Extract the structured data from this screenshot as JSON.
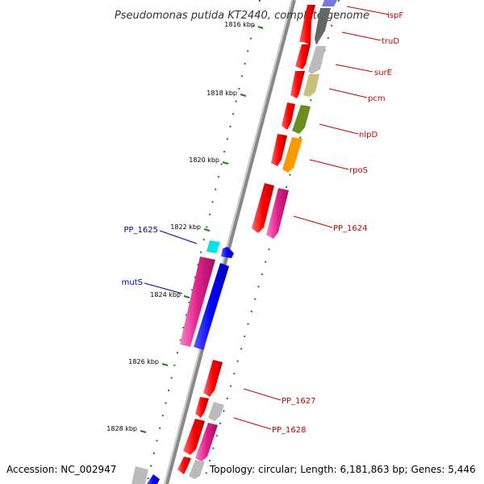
{
  "title": "Pseudomonas putida KT2440, complete genome",
  "accession": "Accession: NC_002947",
  "topology": "Topology: circular; Length: 6,181,863 bp; Genes: 5,446",
  "colors": {
    "backbone": "#777777",
    "tick": "#1a7f1a",
    "forward_label": "#cc0000",
    "reverse_label": "#0000aa"
  },
  "ticks": [
    "1816 kbp",
    "1818 kbp",
    "1820 kbp",
    "1822 kbp",
    "1824 kbp",
    "1826 kbp",
    "1828 kbp"
  ],
  "genes": [
    {
      "label": "ispF",
      "strand": "forward",
      "color": "#7777dd"
    },
    {
      "label": "truD",
      "strand": "forward",
      "color": "#666666"
    },
    {
      "label": "surE",
      "strand": "forward",
      "color": "#bbbbbb"
    },
    {
      "label": "pcm",
      "strand": "forward",
      "color": "#c8c080"
    },
    {
      "label": "nlpD",
      "strand": "forward",
      "color": "#6b8e23"
    },
    {
      "label": "rpoS",
      "strand": "forward",
      "color": "#ff9900"
    },
    {
      "label": "PP_1624",
      "strand": "forward",
      "color": "#e0208a"
    },
    {
      "label": "PP_1625",
      "strand": "reverse",
      "color": "#00e5e5"
    },
    {
      "label": "mutS",
      "strand": "reverse",
      "color": "#e0208a"
    },
    {
      "label": "PP_1627",
      "strand": "forward",
      "color": "#ff0000"
    },
    {
      "label": "PP_1628",
      "strand": "forward",
      "color": "#ff0000"
    }
  ]
}
